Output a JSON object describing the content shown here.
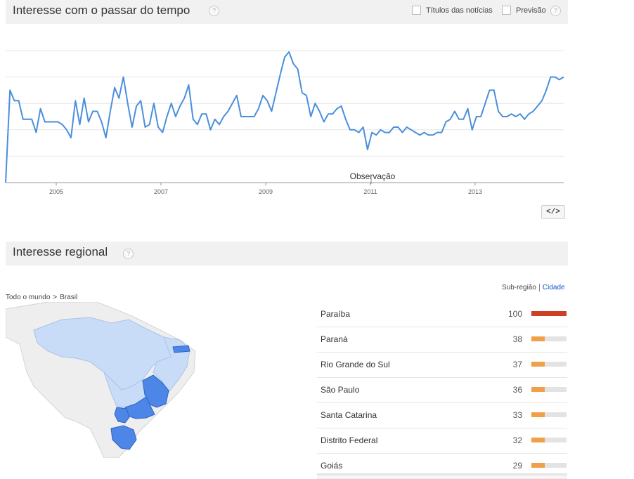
{
  "time_section": {
    "title": "Interesse com o passar do tempo",
    "help": "?",
    "options": [
      {
        "label": "Títulos das notícias",
        "checked": false
      },
      {
        "label": "Previsão",
        "checked": false
      }
    ],
    "embed_label": "</>"
  },
  "chart_data": {
    "type": "line",
    "title": "",
    "xlabel": "",
    "ylabel": "",
    "x_ticks": [
      "2005",
      "2007",
      "2009",
      "2011",
      "2013"
    ],
    "annotation": "Observação",
    "ylim": [
      0,
      100
    ],
    "grid": true,
    "series": [
      {
        "color": "#4a8fdc",
        "x_start": "2004-01",
        "interval": "month",
        "values": [
          0,
          70,
          62,
          62,
          48,
          48,
          48,
          38,
          56,
          46,
          46,
          46,
          46,
          44,
          40,
          34,
          62,
          44,
          64,
          46,
          54,
          54,
          46,
          34,
          54,
          72,
          64,
          80,
          60,
          42,
          58,
          62,
          42,
          44,
          60,
          42,
          38,
          50,
          60,
          50,
          58,
          64,
          74,
          48,
          44,
          52,
          52,
          40,
          48,
          44,
          50,
          54,
          60,
          66,
          50,
          50,
          50,
          50,
          56,
          66,
          62,
          54,
          68,
          82,
          95,
          99,
          90,
          86,
          68,
          66,
          50,
          60,
          54,
          46,
          52,
          52,
          56,
          58,
          48,
          40,
          40,
          38,
          42,
          25,
          38,
          36,
          40,
          38,
          38,
          42,
          42,
          38,
          42,
          40,
          38,
          36,
          38,
          36,
          36,
          38,
          38,
          46,
          48,
          54,
          48,
          48,
          56,
          40,
          50,
          50,
          60,
          70,
          70,
          54,
          50,
          50,
          52,
          50,
          52,
          48,
          52,
          54,
          58,
          62,
          70,
          80,
          80,
          78,
          80
        ]
      }
    ]
  },
  "regional_section": {
    "title": "Interesse regional",
    "help": "?",
    "breadcrumb": [
      "Todo o mundo",
      ">",
      "Brasil"
    ],
    "view_switch": {
      "active": "Sub-região",
      "other": "Cidade"
    },
    "regions": [
      {
        "name": "Paraíba",
        "value": 100,
        "color": "#cc4125"
      },
      {
        "name": "Paraná",
        "value": 38,
        "color": "#f0a04b"
      },
      {
        "name": "Rio Grande do Sul",
        "value": 37,
        "color": "#f0a04b"
      },
      {
        "name": "São Paulo",
        "value": 36,
        "color": "#f0a04b"
      },
      {
        "name": "Santa Catarina",
        "value": 33,
        "color": "#f0a04b"
      },
      {
        "name": "Distrito Federal",
        "value": 32,
        "color": "#f0a04b"
      },
      {
        "name": "Goiás",
        "value": 29,
        "color": "#f0a04b"
      }
    ],
    "map_colors": {
      "ocean": "#ffffff",
      "land": "#eeeeee",
      "low": "#c9dcf7",
      "high": "#4e86e8"
    }
  }
}
